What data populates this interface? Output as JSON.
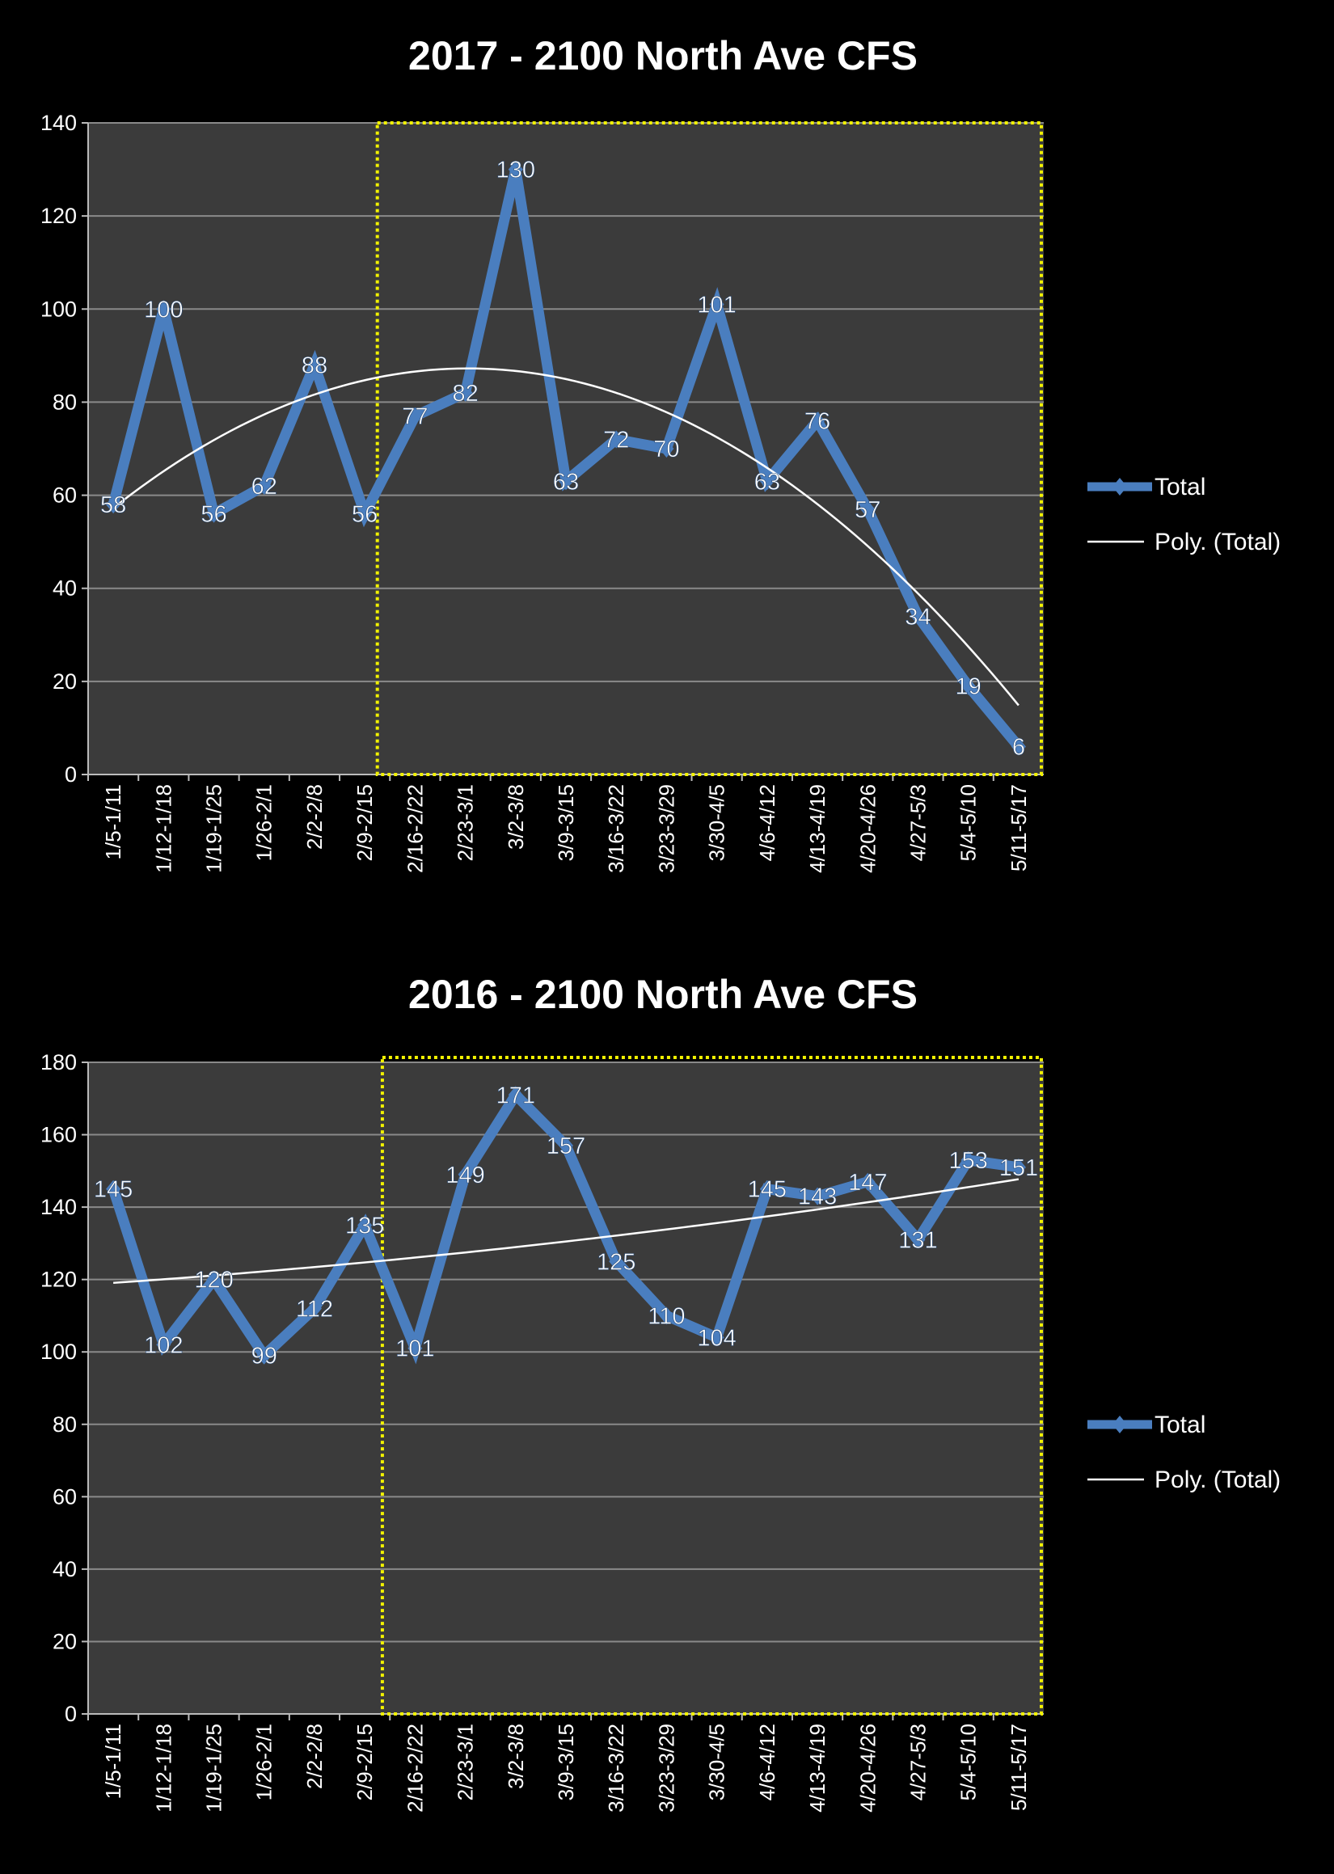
{
  "colors": {
    "background": "#000000",
    "plot_bg": "#3b3b3b",
    "series": "#4a7ebf",
    "trend": "#ffffff",
    "highlight_box": "#f2f200",
    "grid": "#8a8a8a",
    "text": "#ffffff"
  },
  "chart_data": [
    {
      "type": "line",
      "title": "2017 - 2100 North Ave CFS",
      "xlabel": "",
      "ylabel": "",
      "ylim": [
        0,
        140
      ],
      "ystep": 20,
      "yticks": [
        "0",
        "20",
        "40",
        "60",
        "80",
        "100",
        "120",
        "140"
      ],
      "grid": true,
      "legend_position": "right",
      "legend": [
        "Total",
        "Poly. (Total)"
      ],
      "categories": [
        "1/5-1/11",
        "1/12-1/18",
        "1/19-1/25",
        "1/26-2/1",
        "2/2-2/8",
        "2/9-2/15",
        "2/16-2/22",
        "2/23-3/1",
        "3/2-3/8",
        "3/9-3/15",
        "3/16-3/22",
        "3/23-3/29",
        "3/30-4/5",
        "4/6-4/12",
        "4/13-4/19",
        "4/20-4/26",
        "4/27-5/3",
        "5/4-5/10",
        "5/11-5/17"
      ],
      "series": [
        {
          "name": "Total",
          "values": [
            58,
            100,
            56,
            62,
            88,
            56,
            77,
            82,
            130,
            63,
            72,
            70,
            101,
            63,
            76,
            57,
            34,
            19,
            6
          ]
        }
      ],
      "trendline": {
        "name": "Poly. (Total)",
        "order": 2
      },
      "highlight_range": [
        "2/16-2/22",
        "5/11-5/17"
      ]
    },
    {
      "type": "line",
      "title": "2016 - 2100 North Ave CFS",
      "xlabel": "",
      "ylabel": "",
      "ylim": [
        0,
        180
      ],
      "ystep": 20,
      "yticks": [
        "0",
        "20",
        "40",
        "60",
        "80",
        "100",
        "120",
        "140",
        "160",
        "180"
      ],
      "grid": true,
      "legend_position": "right",
      "legend": [
        "Total",
        "Poly. (Total)"
      ],
      "categories": [
        "1/5-1/11",
        "1/12-1/18",
        "1/19-1/25",
        "1/26-2/1",
        "2/2-2/8",
        "2/9-2/15",
        "2/16-2/22",
        "2/23-3/1",
        "3/2-3/8",
        "3/9-3/15",
        "3/16-3/22",
        "3/23-3/29",
        "3/30-4/5",
        "4/6-4/12",
        "4/13-4/19",
        "4/20-4/26",
        "4/27-5/3",
        "5/4-5/10",
        "5/11-5/17"
      ],
      "series": [
        {
          "name": "Total",
          "values": [
            145,
            102,
            120,
            99,
            112,
            135,
            101,
            149,
            171,
            157,
            125,
            110,
            104,
            145,
            143,
            147,
            131,
            153,
            151
          ]
        }
      ],
      "trendline": {
        "name": "Poly. (Total)",
        "order": 2
      },
      "highlight_range": [
        "2/16-2/22",
        "5/11-5/17"
      ]
    }
  ]
}
